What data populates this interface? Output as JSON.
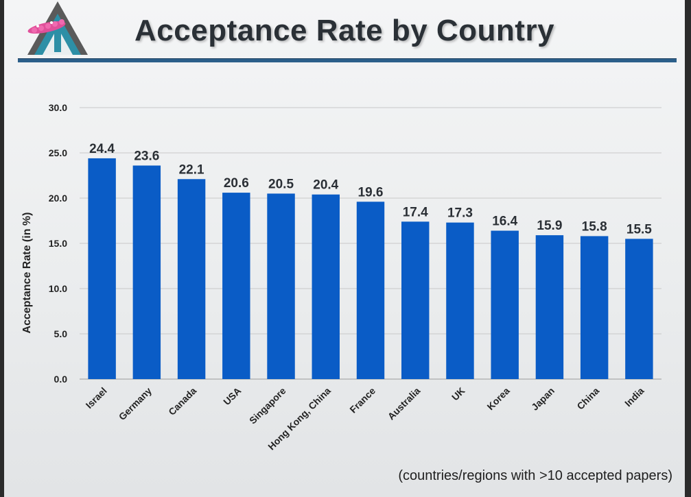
{
  "slide": {
    "title": "Acceptance Rate by Country",
    "footnote": "(countries/regions with >10 accepted papers)"
  },
  "colors": {
    "bar": "#0a5cc6",
    "rule": "#2c5f8a",
    "grid": "#c8c8c8",
    "title": "#2a3036"
  },
  "chart_data": {
    "type": "bar",
    "title": "Acceptance Rate by Country",
    "xlabel": "",
    "ylabel": "Acceptance Rate (in %)",
    "ylim": [
      0,
      30
    ],
    "yticks": [
      "0.0",
      "5.0",
      "10.0",
      "15.0",
      "20.0",
      "25.0",
      "30.0"
    ],
    "grid": true,
    "categories": [
      "Israel",
      "Germany",
      "Canada",
      "USA",
      "Singapore",
      "Hong Kong, China",
      "France",
      "Australia",
      "UK",
      "Korea",
      "Japan",
      "China",
      "India"
    ],
    "values": [
      24.4,
      23.6,
      22.1,
      20.6,
      20.5,
      20.4,
      19.6,
      17.4,
      17.3,
      16.4,
      15.9,
      15.8,
      15.5
    ],
    "labels": [
      "24.4",
      "23.6",
      "22.1",
      "20.6",
      "20.5",
      "20.4",
      "19.6",
      "17.4",
      "17.3",
      "16.4",
      "15.9",
      "15.8",
      "15.5"
    ]
  }
}
